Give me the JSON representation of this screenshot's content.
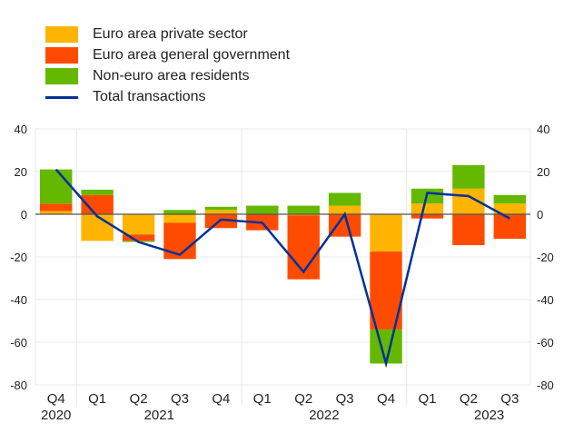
{
  "chart_data": {
    "type": "bar",
    "stacked": true,
    "title": "",
    "xlabel": "",
    "ylabel": "",
    "ylim": [
      -80,
      40
    ],
    "yticks": [
      40,
      20,
      0,
      -20,
      -40,
      -60,
      -80
    ],
    "grid": true,
    "legend_position": "top-left",
    "categories": [
      "Q4",
      "Q1",
      "Q2",
      "Q3",
      "Q4",
      "Q1",
      "Q2",
      "Q3",
      "Q4",
      "Q1",
      "Q2",
      "Q3"
    ],
    "year_labels": [
      {
        "label": "2020",
        "index": 0
      },
      {
        "label": "2021",
        "index": 2.5
      },
      {
        "label": "2022",
        "index": 6.5
      },
      {
        "label": "2023",
        "index": 10.5
      }
    ],
    "series": [
      {
        "name": "Euro area private sector",
        "kind": "bar",
        "color": "#FFB400",
        "values": [
          1.5,
          -12.5,
          -9.5,
          -4,
          2,
          0,
          -0.5,
          4,
          -17.5,
          5,
          12,
          5
        ]
      },
      {
        "name": "Euro area general government",
        "kind": "bar",
        "color": "#FF4B00",
        "values": [
          3.5,
          9,
          -3,
          -17,
          -6.5,
          -7.5,
          -30,
          -10.5,
          -36.5,
          -2,
          -14.5,
          -11.5
        ]
      },
      {
        "name": "Non-euro area residents",
        "kind": "bar",
        "color": "#65B800",
        "values": [
          16,
          2.5,
          -0.5,
          2,
          1.5,
          4,
          4,
          6,
          -16,
          7,
          11,
          4
        ]
      },
      {
        "name": "Total transactions",
        "kind": "line",
        "color": "#003299",
        "values": [
          21,
          -1,
          -13,
          -19,
          -2.5,
          -4,
          -27,
          0,
          -70,
          10,
          8.5,
          -2
        ]
      }
    ]
  }
}
